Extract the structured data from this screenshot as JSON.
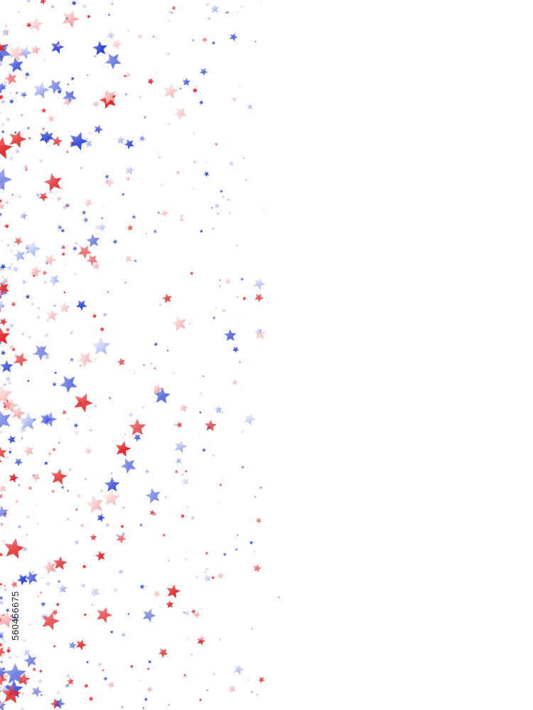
{
  "watermark_id": "560456675"
}
